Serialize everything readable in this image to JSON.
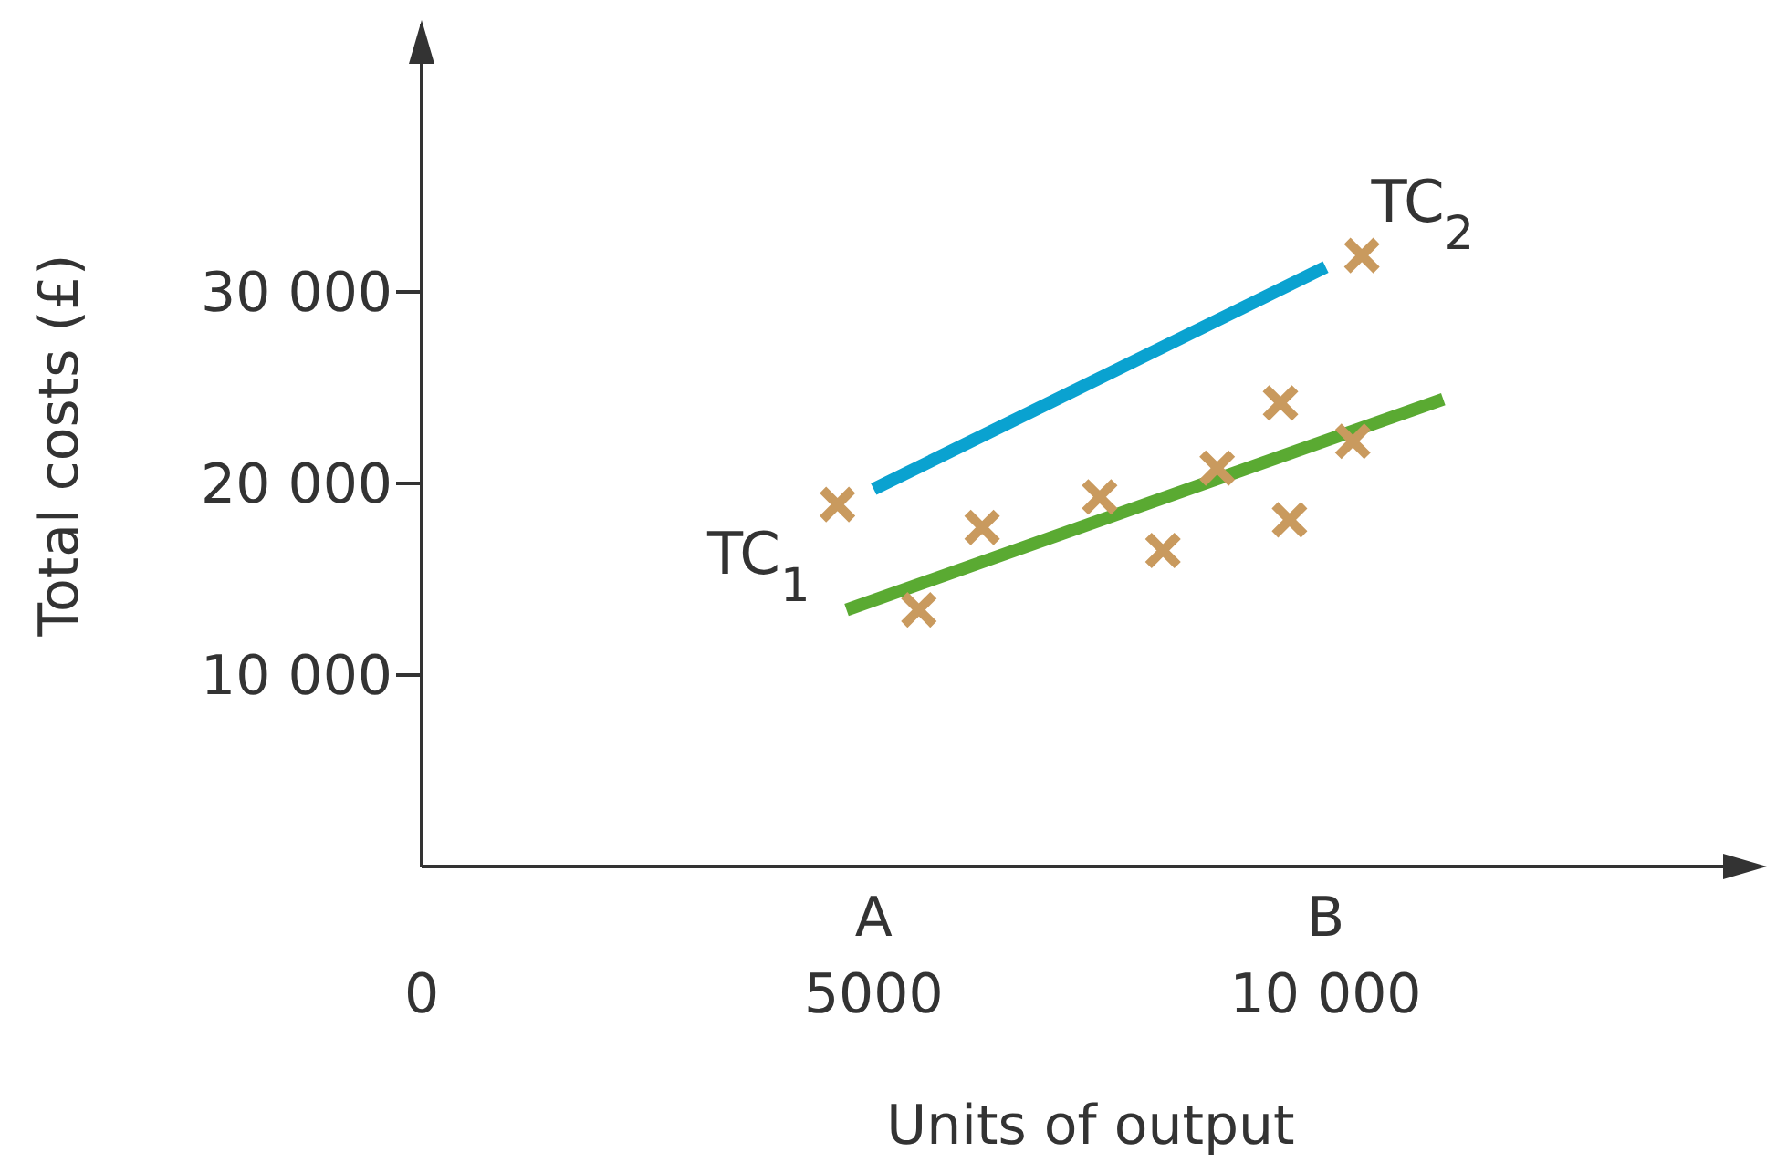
{
  "chart_data": {
    "type": "line",
    "xlabel": "Units of output",
    "ylabel": "Total costs (£)",
    "xlim": [
      0,
      14800
    ],
    "ylim": [
      0,
      44000
    ],
    "xticks": [
      0,
      5000,
      {
        "value": 10000,
        "label": "10 000"
      }
    ],
    "annotations": [
      "A",
      "B"
    ],
    "yticks": [
      {
        "value": 10000,
        "label": "10 000"
      },
      {
        "value": 20000,
        "label": "20 000"
      },
      {
        "value": 30000,
        "label": "30 000"
      }
    ],
    "grid": false,
    "series": [
      {
        "type": "scatter",
        "color": "#c99a5e",
        "marker": "cross",
        "x": [
          4600,
          5500,
          6200,
          7500,
          8200,
          8800,
          9500,
          9600,
          10300,
          10400
        ],
        "values": [
          18900,
          13400,
          17700,
          19300,
          16500,
          20800,
          24200,
          18100,
          22200,
          31900
        ]
      },
      {
        "name": "TC$_{1}$",
        "color": "#5aaa32",
        "marker": "none",
        "x": [
          4700,
          11300
        ],
        "values": [
          13400,
          24400
        ]
      },
      {
        "name": "TC$_{2}$",
        "color": "#0aa2d0",
        "marker": "none",
        "x": [
          5000,
          10000
        ],
        "values": [
          19700,
          31300
        ]
      }
    ]
  }
}
